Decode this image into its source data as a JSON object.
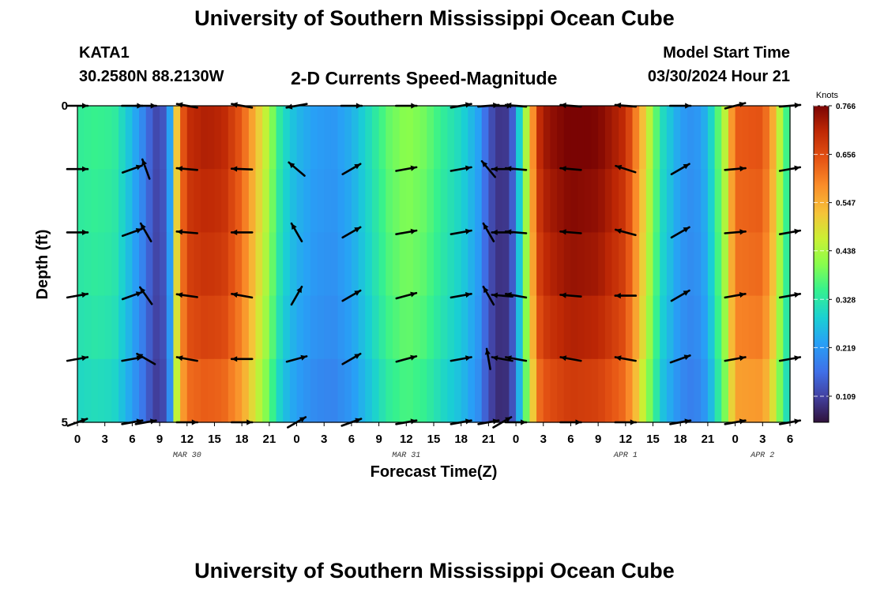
{
  "header": {
    "title": "University of Southern Mississippi Ocean Cube",
    "station": "KATA1",
    "coords": "30.2580N  88.2130W",
    "chart_title": "2-D Currents Speed-Magnitude",
    "model_label": "Model Start Time",
    "model_time": "03/30/2024 Hour 21",
    "bottom_title": "University of Southern Mississippi Ocean Cube"
  },
  "chart_data": {
    "type": "heatmap",
    "title": "2-D Currents Speed-Magnitude",
    "xlabel": "Forecast Time(Z)",
    "ylabel": "Depth (ft)",
    "x_hours_from_start": [
      0,
      3,
      6,
      9,
      12,
      15,
      18,
      21,
      24,
      27,
      30,
      33,
      36,
      39,
      42,
      45,
      48,
      51,
      54,
      57,
      60,
      63,
      66,
      69,
      72,
      75,
      78
    ],
    "x_tick_labels": [
      "0",
      "3",
      "6",
      "9",
      "12",
      "15",
      "18",
      "21",
      "0",
      "3",
      "6",
      "9",
      "12",
      "15",
      "18",
      "21",
      "0",
      "3",
      "6",
      "9",
      "12",
      "15",
      "18",
      "21",
      "0",
      "3",
      "6"
    ],
    "date_labels": [
      {
        "text": "MAR 30",
        "hour": 12
      },
      {
        "text": "MAR 31",
        "hour": 36
      },
      {
        "text": "APR 1",
        "hour": 60
      },
      {
        "text": "APR 2",
        "hour": 75
      }
    ],
    "ylim": [
      0,
      5
    ],
    "y_tick_labels": [
      "0",
      "5"
    ],
    "depth_levels": [
      0,
      1,
      2,
      3,
      4,
      5
    ],
    "colorbar": {
      "label": "Knots",
      "min": 0.05,
      "max": 0.766,
      "ticks": [
        "0.766",
        "0.656",
        "0.547",
        "0.438",
        "0.328",
        "0.219",
        "0.109"
      ]
    },
    "speed_profile_hours": [
      0,
      2,
      4,
      5.5,
      7,
      8,
      9,
      10,
      11,
      12,
      14,
      16,
      18,
      19.5,
      21,
      22,
      23,
      24,
      26,
      28,
      30,
      32,
      34,
      36,
      38,
      40,
      42,
      44,
      45,
      46.5,
      47.5,
      48.5,
      49.5,
      50.5,
      51.5,
      54,
      57,
      60,
      61.5,
      63,
      64,
      66,
      67.5,
      69,
      71,
      72,
      75,
      76,
      77,
      78
    ],
    "speed_profile_knots": [
      0.33,
      0.34,
      0.33,
      0.27,
      0.2,
      0.14,
      0.1,
      0.18,
      0.55,
      0.68,
      0.7,
      0.69,
      0.62,
      0.52,
      0.42,
      0.33,
      0.28,
      0.25,
      0.22,
      0.21,
      0.24,
      0.3,
      0.37,
      0.4,
      0.38,
      0.33,
      0.29,
      0.22,
      0.13,
      0.08,
      0.12,
      0.3,
      0.5,
      0.68,
      0.72,
      0.75,
      0.74,
      0.68,
      0.55,
      0.4,
      0.3,
      0.22,
      0.2,
      0.25,
      0.45,
      0.62,
      0.63,
      0.55,
      0.42,
      0.3
    ],
    "depth_factors": [
      1.04,
      1.02,
      1.0,
      0.98,
      0.94,
      0.88
    ],
    "vector_hours": [
      0,
      6,
      7.5,
      12,
      18,
      24,
      30,
      36,
      42,
      45,
      46.5,
      48,
      54,
      60,
      66,
      72,
      78
    ],
    "vector_direction_deg": [
      [
        90,
        90,
        90,
        280,
        280,
        260,
        90,
        90,
        80,
        85,
        90,
        275,
        275,
        275,
        90,
        75,
        85
      ],
      [
        90,
        70,
        340,
        275,
        272,
        310,
        60,
        80,
        80,
        320,
        270,
        275,
        275,
        288,
        60,
        85,
        80
      ],
      [
        90,
        70,
        330,
        275,
        270,
        330,
        60,
        80,
        80,
        330,
        270,
        275,
        275,
        285,
        60,
        85,
        80
      ],
      [
        80,
        70,
        325,
        278,
        280,
        30,
        60,
        75,
        80,
        330,
        275,
        280,
        275,
        270,
        60,
        80,
        80
      ],
      [
        80,
        80,
        300,
        280,
        270,
        75,
        60,
        75,
        80,
        350,
        280,
        280,
        280,
        280,
        70,
        80,
        80
      ],
      [
        70,
        80,
        80,
        90,
        90,
        60,
        70,
        80,
        80,
        80,
        60,
        90,
        90,
        90,
        80,
        80,
        80
      ]
    ]
  }
}
